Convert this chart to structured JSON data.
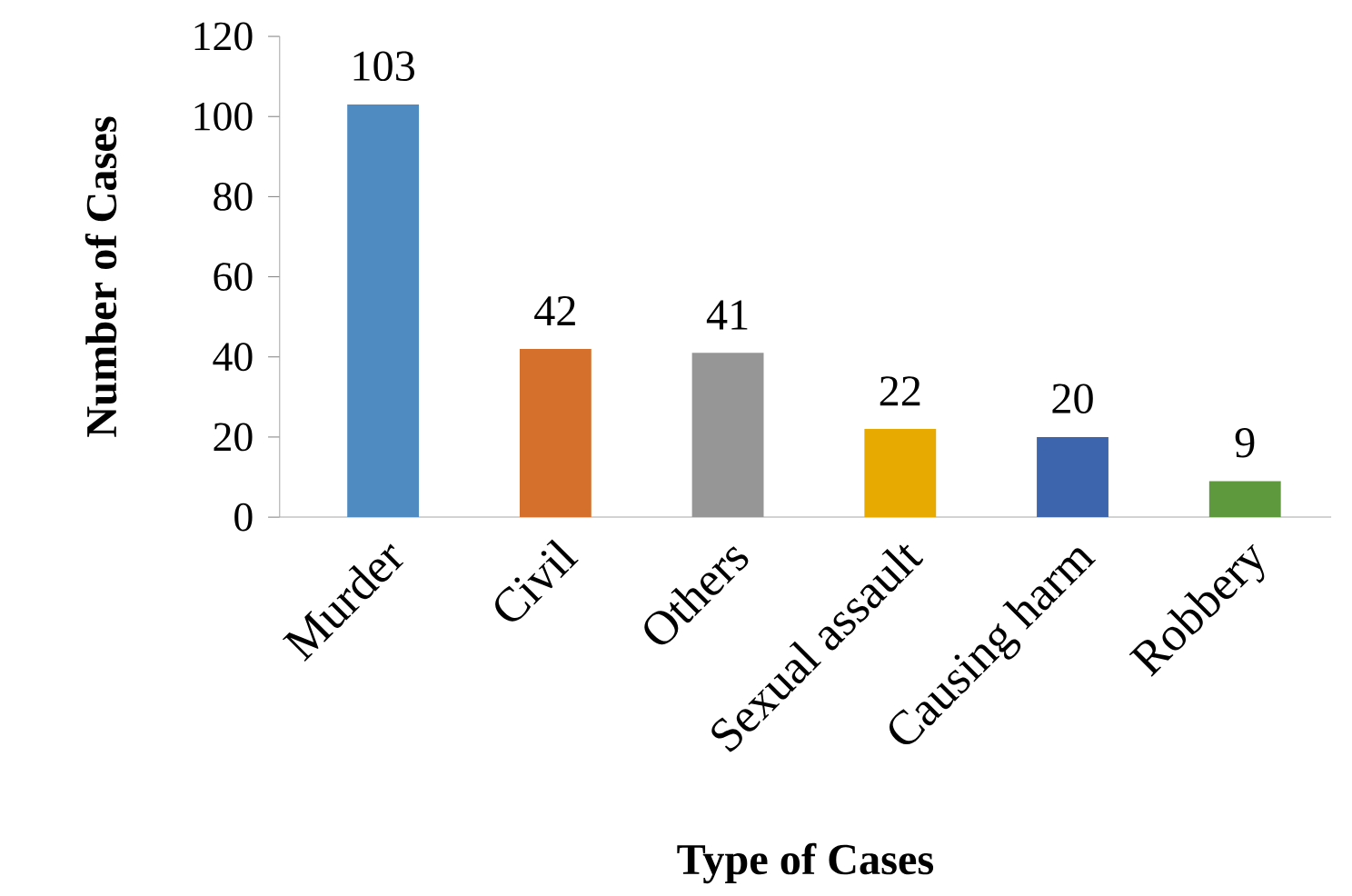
{
  "chart_data": {
    "type": "bar",
    "xlabel": "Type of Cases",
    "ylabel": "Number of Cases",
    "categories": [
      "Murder",
      "Civil",
      "Others",
      "Sexual assault",
      "Causing harm",
      "Robbery"
    ],
    "values": [
      103,
      42,
      41,
      22,
      20,
      9
    ],
    "colors": [
      "#4f8bc1",
      "#d4702c",
      "#969696",
      "#e7aa00",
      "#3c65ae",
      "#5e9a3d"
    ],
    "ylim": [
      0,
      120
    ],
    "yticks": [
      0,
      20,
      40,
      60,
      80,
      100,
      120
    ],
    "data_labels": true
  }
}
